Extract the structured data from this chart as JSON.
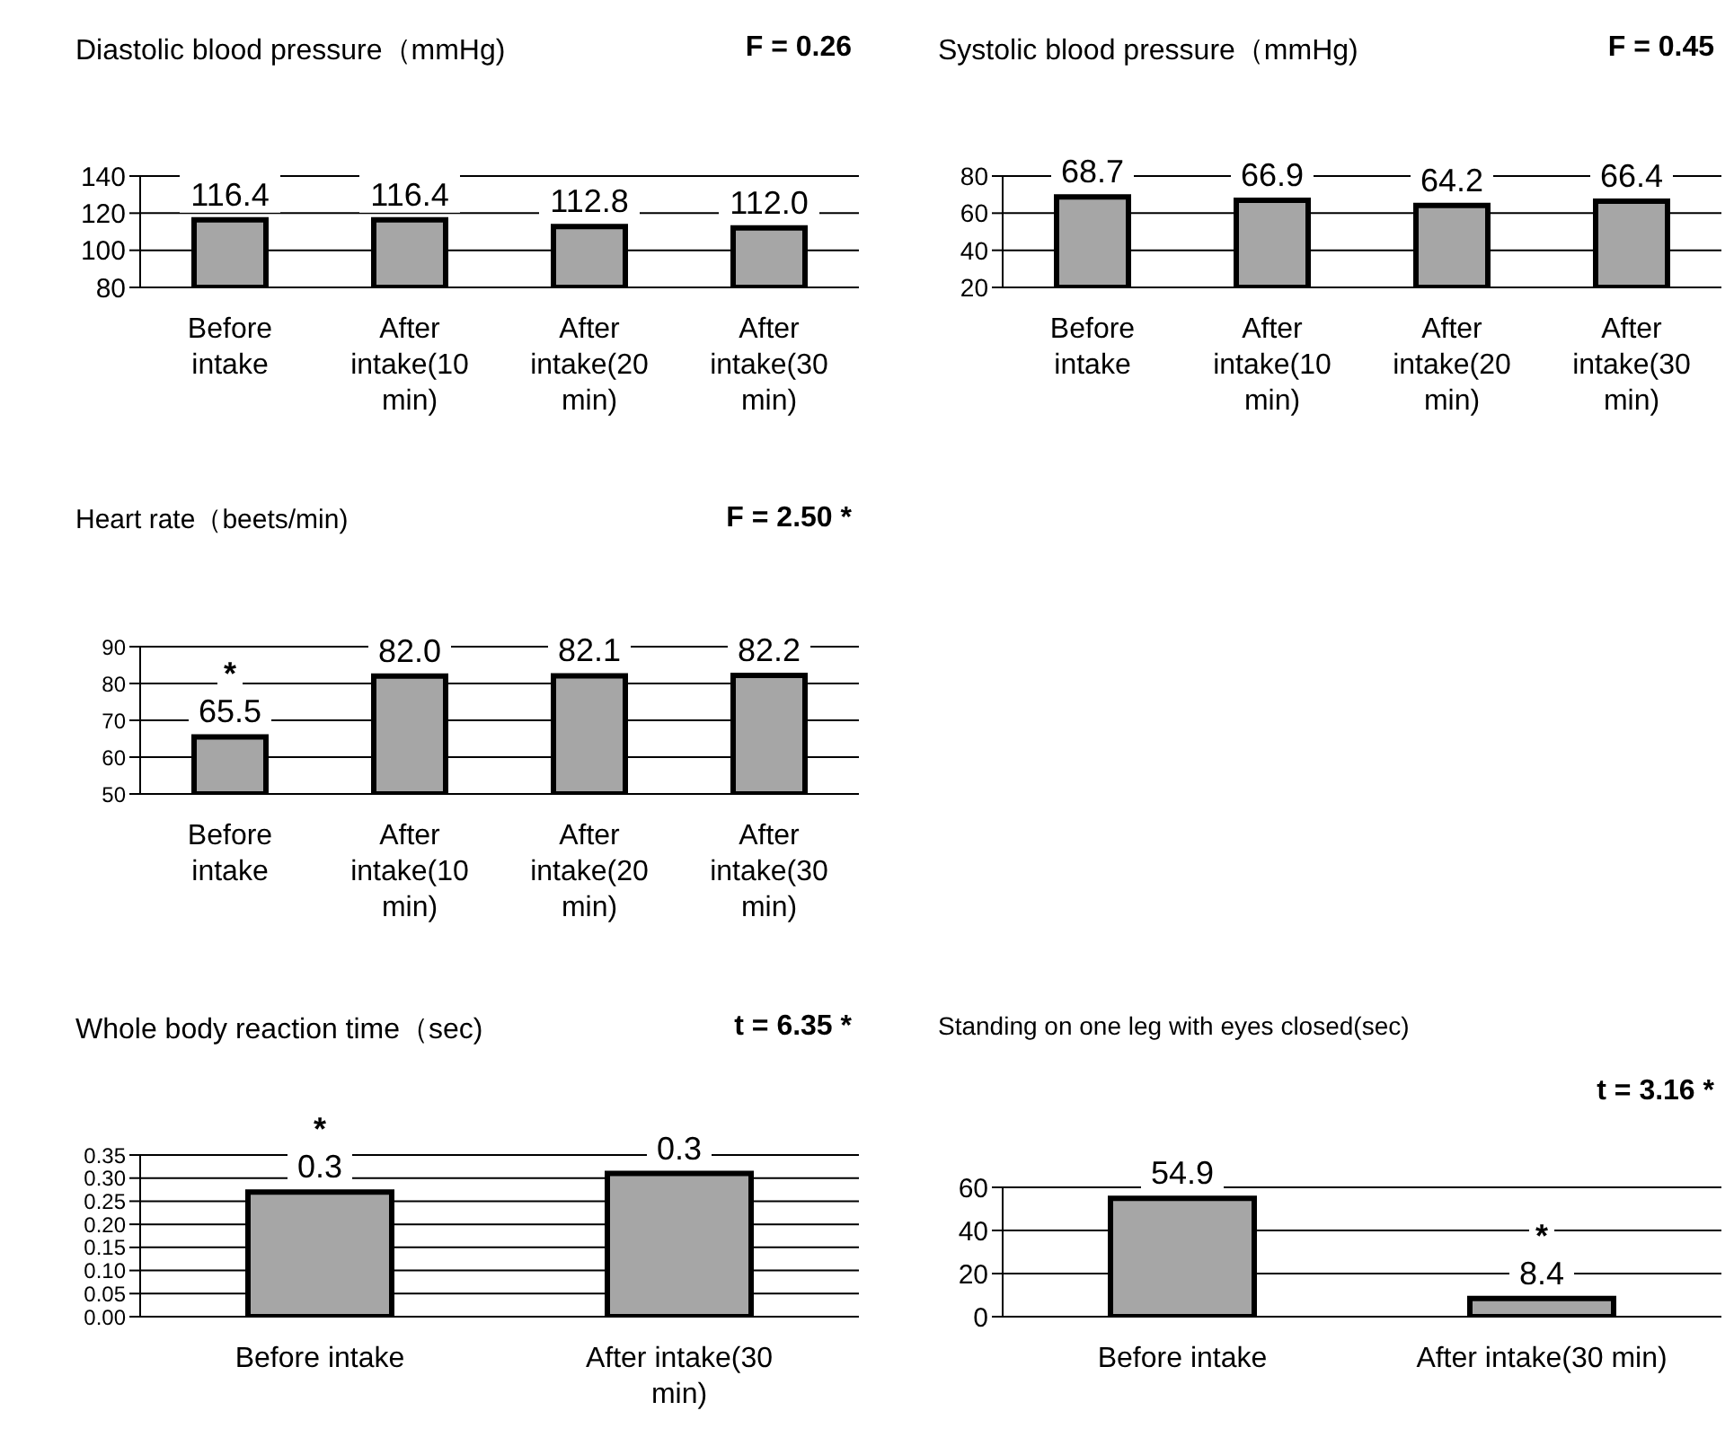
{
  "chart_data": [
    {
      "type": "bar",
      "title": "Diastolic blood pressure（mmHg)",
      "annotations": [
        "F = 0.26"
      ],
      "categories": [
        "Before intake",
        "After intake(10 min)",
        "After intake(20 min)",
        "After intake(30 min)"
      ],
      "values": [
        116.4,
        116.4,
        112.8,
        112.0
      ],
      "value_labels": [
        "116.4",
        "116.4",
        "112.8",
        "112.0"
      ],
      "color": "#a6a6a6",
      "ylim": [
        80,
        140
      ],
      "yticks": [
        80,
        100,
        120,
        140
      ],
      "grid": "y"
    },
    {
      "type": "bar",
      "title": "Systolic blood pressure（mmHg)",
      "annotations": [
        "F = 0.45"
      ],
      "categories": [
        "Before intake",
        "After intake(10 min)",
        "After intake(20 min)",
        "After intake(30 min)"
      ],
      "values": [
        68.7,
        66.9,
        64.2,
        66.4
      ],
      "color": "#a6a6a6",
      "ylim": [
        20,
        80
      ],
      "yticks": [
        20,
        40,
        60,
        80
      ],
      "grid": "y",
      "data_labels": true
    },
    {
      "type": "bar",
      "title": "Heart rate（beets/min)",
      "annotations": [
        "F = 2.50 *",
        {
          "text": "*",
          "x": "Before intake",
          "y": 65.5
        }
      ],
      "categories": [
        "Before intake",
        "After intake(10 min)",
        "After intake(20 min)",
        "After intake(30 min)"
      ],
      "values": [
        65.5,
        82.0,
        82.1,
        82.2
      ],
      "value_labels": [
        "65.5",
        "82.0",
        "82.1",
        "82.2"
      ],
      "color": "#a6a6a6",
      "ylim": [
        50,
        90
      ],
      "yticks": [
        50,
        60,
        70,
        80,
        90
      ],
      "grid": "y"
    },
    {
      "type": "bar",
      "title": "Whole body reaction time（sec)",
      "annotations": [
        "t = 6.35 *",
        {
          "text": "*",
          "x": "Before intake",
          "y": 0.27
        }
      ],
      "categories": [
        "Before intake",
        "After intake(30 min)"
      ],
      "values": [
        0.27,
        0.31
      ],
      "value_labels": [
        "0.3",
        "0.3"
      ],
      "color": "#a6a6a6",
      "ylim": [
        0,
        0.35
      ],
      "yticks": [
        {
          "value": 0,
          "label": "0.00"
        },
        {
          "value": 0.05,
          "label": "0.05"
        },
        {
          "value": 0.1,
          "label": "0.10"
        },
        {
          "value": 0.15,
          "label": "0.15"
        },
        {
          "value": 0.2,
          "label": "0.20"
        },
        {
          "value": 0.25,
          "label": "0.25"
        },
        {
          "value": 0.3,
          "label": "0.30"
        },
        {
          "value": 0.35,
          "label": "0.35"
        }
      ],
      "grid": "y"
    },
    {
      "type": "bar",
      "title": "Standing on one leg with eyes closed(sec)",
      "annotations": [
        "t = 3.16 *",
        {
          "text": "*",
          "x": "After intake(30 min)",
          "y": 8.4
        }
      ],
      "categories": [
        "Before intake",
        "After intake(30 min)"
      ],
      "values": [
        54.9,
        8.4
      ],
      "color": "#a6a6a6",
      "ylim": [
        0,
        60
      ],
      "yticks": [
        0,
        20,
        40,
        60
      ],
      "grid": "y",
      "data_labels": true
    }
  ]
}
